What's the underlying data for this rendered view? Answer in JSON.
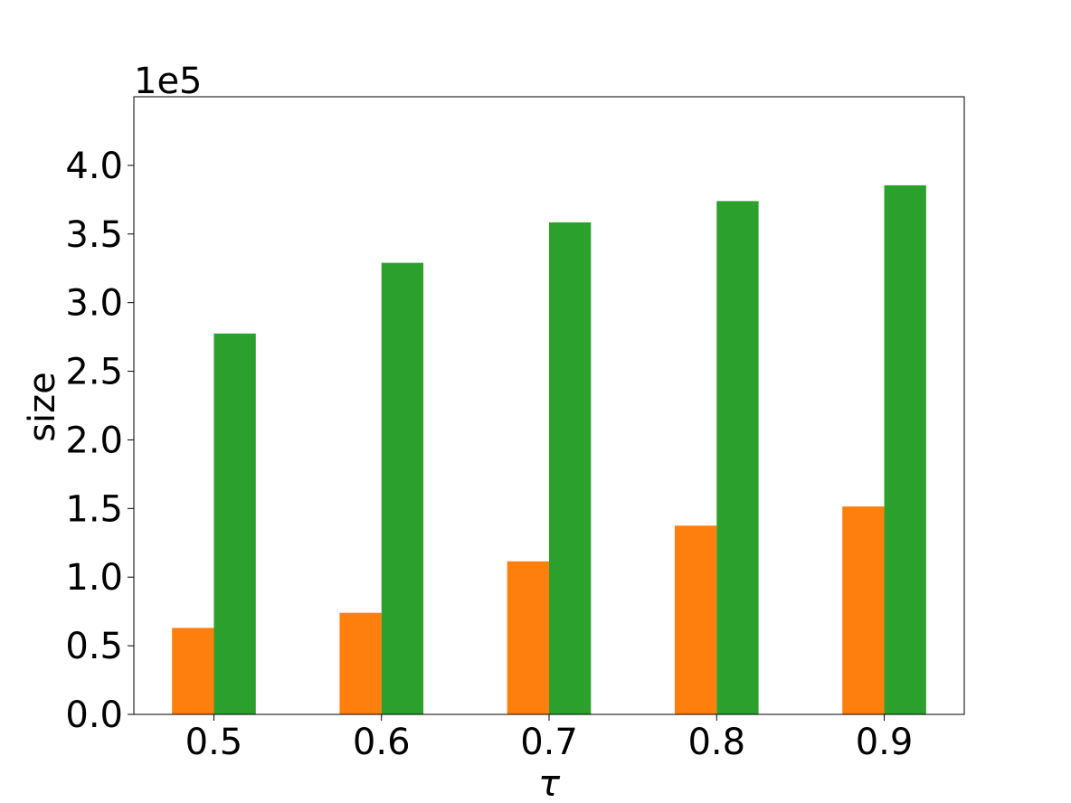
{
  "chart_data": {
    "type": "bar",
    "title": "",
    "xlabel": "τ",
    "ylabel": "size",
    "offset_label": "1e5",
    "categories": [
      "0.5",
      "0.6",
      "0.7",
      "0.8",
      "0.9"
    ],
    "series": [
      {
        "color": "#ff7f0e",
        "values": [
          63000,
          74000,
          111500,
          137500,
          151500
        ]
      },
      {
        "color": "#2ca02c",
        "values": [
          277500,
          329000,
          358500,
          374000,
          385500
        ]
      }
    ],
    "ylim": [
      0,
      450000
    ],
    "yticks": [
      "0.0",
      "0.5",
      "1.0",
      "1.5",
      "2.0",
      "2.5",
      "3.0",
      "3.5",
      "4.0"
    ],
    "ytick_values": [
      0,
      50000,
      100000,
      150000,
      200000,
      250000,
      300000,
      350000,
      400000
    ],
    "grid": false,
    "legend": "none"
  }
}
